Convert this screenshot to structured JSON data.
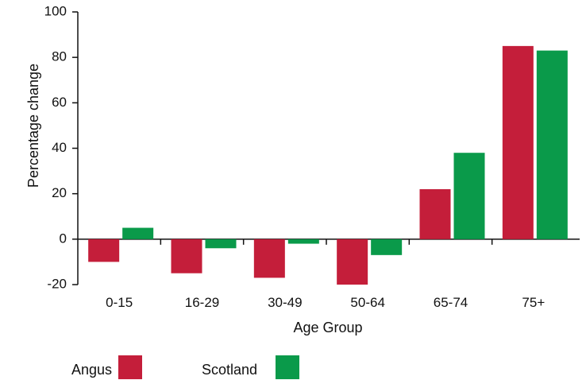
{
  "chart_data": {
    "type": "bar",
    "title": "",
    "xlabel": "Age Group",
    "ylabel": "Percentage change",
    "ylim": [
      -20,
      100
    ],
    "yticks": [
      -20,
      0,
      20,
      40,
      60,
      80,
      100
    ],
    "grid": false,
    "legend_position": "bottom-left",
    "categories": [
      "0-15",
      "16-29",
      "30-49",
      "50-64",
      "65-74",
      "75+"
    ],
    "series": [
      {
        "name": "Angus",
        "color": "#c41e3a",
        "values": [
          -10,
          -15,
          -17,
          -20,
          22,
          85
        ]
      },
      {
        "name": "Scotland",
        "color": "#0a9a4a",
        "values": [
          5,
          -4,
          -2,
          -7,
          38,
          83
        ]
      }
    ]
  }
}
